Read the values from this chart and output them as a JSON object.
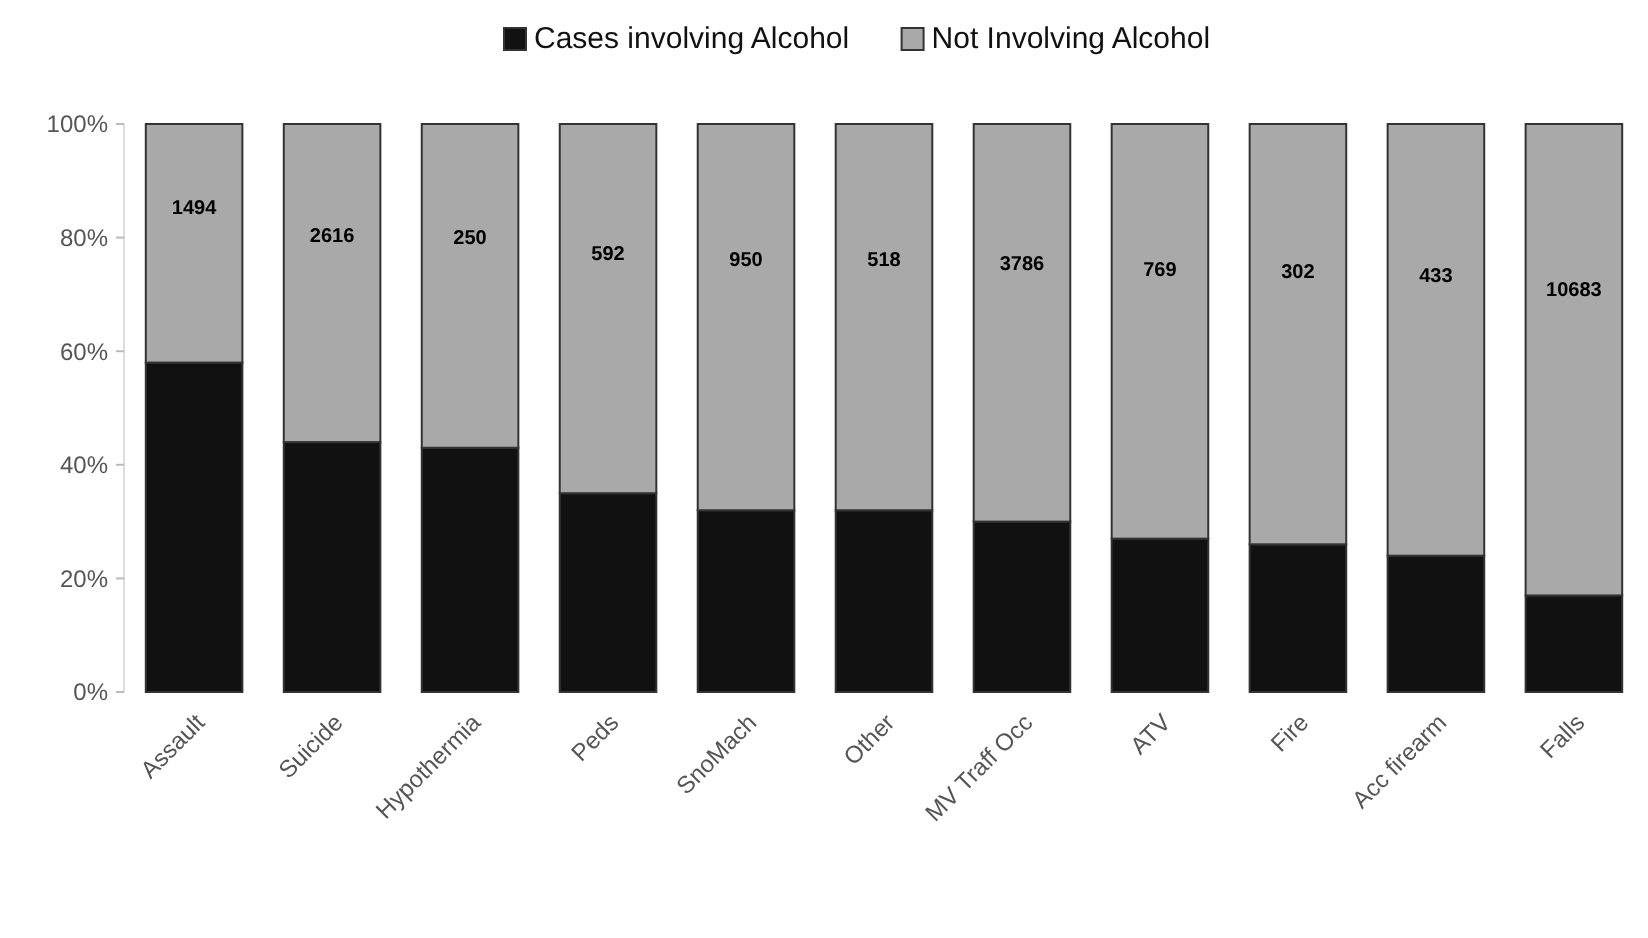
{
  "chart_data": {
    "type": "bar",
    "stacked": true,
    "categories": [
      "Assault",
      "Suicide",
      "Hypothermia",
      "Peds",
      "SnoMach",
      "Other",
      "MV Traff Occ",
      "ATV",
      "Fire",
      "Acc firearm",
      "Falls"
    ],
    "series": [
      {
        "name": "Cases involving Alcohol",
        "color": "#111111",
        "values": [
          58,
          44,
          43,
          35,
          32,
          32,
          30,
          27,
          26,
          24,
          17
        ]
      },
      {
        "name": "Not Involving Alcohol",
        "color": "#a9a9a9",
        "values": [
          42,
          56,
          57,
          65,
          68,
          68,
          70,
          73,
          74,
          76,
          83
        ]
      }
    ],
    "annotations": [
      "1494",
      "2616",
      "250",
      "592",
      "950",
      "518",
      "3786",
      "769",
      "302",
      "433",
      "10683"
    ],
    "ylim": [
      0,
      100
    ],
    "yticks": [
      {
        "value": 0,
        "label": "0%"
      },
      {
        "value": 20,
        "label": "20%"
      },
      {
        "value": 40,
        "label": "40%"
      },
      {
        "value": 60,
        "label": "60%"
      },
      {
        "value": 80,
        "label": "80%"
      },
      {
        "value": 100,
        "label": "100%"
      }
    ],
    "legend": "top",
    "grid": false
  }
}
